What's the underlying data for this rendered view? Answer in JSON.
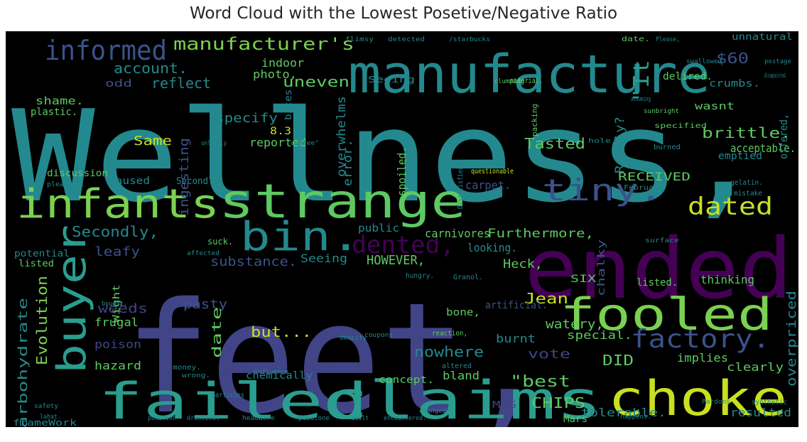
{
  "chart_data": {
    "type": "wordcloud",
    "title": "Word Cloud with the Lowest Posetive/Negative Ratio",
    "background": "#000000",
    "colors": {
      "teal": "#23898e",
      "blue": "#3b528b",
      "indigo": "#414487",
      "purple": "#440154",
      "green": "#5ec962",
      "lime": "#7ad151",
      "yellow": "#c8e020",
      "aqua": "#2a9d8f"
    },
    "words": [
      {
        "text": "Wellness,",
        "color": "teal"
      },
      {
        "text": "feet,",
        "color": "indigo"
      },
      {
        "text": "manufacture",
        "color": "teal"
      },
      {
        "text": "ended",
        "color": "purple"
      },
      {
        "text": "strange",
        "color": "green"
      },
      {
        "text": "choke",
        "color": "yellow"
      },
      {
        "text": "failed",
        "color": "aqua"
      },
      {
        "text": "claims",
        "color": "aqua"
      },
      {
        "text": "fooled",
        "color": "lime"
      },
      {
        "text": "buyer",
        "color": "aqua"
      },
      {
        "text": "infants",
        "color": "lime"
      },
      {
        "text": "bin.",
        "color": "teal"
      },
      {
        "text": "tiny.",
        "color": "blue"
      },
      {
        "text": "informed",
        "color": "blue"
      },
      {
        "text": "factory.",
        "color": "blue"
      },
      {
        "text": "dated",
        "color": "yellow"
      },
      {
        "text": "dented,",
        "color": "purple"
      },
      {
        "text": "manufacturer's",
        "color": "lime"
      },
      {
        "text": "\"It",
        "color": "aqua"
      },
      {
        "text": "brittle.",
        "color": "green"
      },
      {
        "text": "Tasted",
        "color": "green"
      },
      {
        "text": "account.",
        "color": "teal"
      },
      {
        "text": "reflect",
        "color": "teal"
      },
      {
        "text": "uneven",
        "color": "green"
      },
      {
        "text": "$60",
        "color": "blue"
      },
      {
        "text": "Furthermore,",
        "color": "green"
      },
      {
        "text": "Secondly,",
        "color": "teal"
      },
      {
        "text": "HOWEVER,",
        "color": "green"
      },
      {
        "text": "substance.",
        "color": "blue"
      },
      {
        "text": "Seeing",
        "color": "teal"
      },
      {
        "text": "Evolution",
        "color": "lime"
      },
      {
        "text": "carbohydrate",
        "color": "teal"
      },
      {
        "text": "leafy",
        "color": "blue"
      },
      {
        "text": "Jean",
        "color": "yellow"
      },
      {
        "text": "Heck,",
        "color": "green"
      },
      {
        "text": "watery,",
        "color": "green"
      },
      {
        "text": "but...",
        "color": "yellow"
      },
      {
        "text": "nowhere",
        "color": "teal"
      },
      {
        "text": "vote",
        "color": "indigo"
      },
      {
        "text": "\"best",
        "color": "green"
      },
      {
        "text": "CHIPS",
        "color": "green"
      },
      {
        "text": "overpriced",
        "color": "teal"
      },
      {
        "text": "clearly",
        "color": "green"
      },
      {
        "text": "tolerable.",
        "color": "teal"
      },
      {
        "text": "resulted",
        "color": "teal"
      },
      {
        "text": "special.",
        "color": "green"
      },
      {
        "text": "implies",
        "color": "green"
      },
      {
        "text": "DID",
        "color": "green"
      },
      {
        "text": "burnt",
        "color": "teal"
      },
      {
        "text": "bland",
        "color": "green"
      },
      {
        "text": "weeds",
        "color": "indigo"
      },
      {
        "text": "frugal",
        "color": "green"
      },
      {
        "text": "poison",
        "color": "indigo"
      },
      {
        "text": "hazard",
        "color": "green"
      },
      {
        "text": "pasty",
        "color": "blue"
      },
      {
        "text": "date",
        "color": "green"
      },
      {
        "text": "Same",
        "color": "yellow"
      },
      {
        "text": "reported",
        "color": "green"
      },
      {
        "text": "caused",
        "color": "teal"
      },
      {
        "text": "ingesting",
        "color": "blue"
      },
      {
        "text": "specify",
        "color": "teal"
      },
      {
        "text": "overwhelms",
        "color": "teal"
      },
      {
        "text": "error.",
        "color": "teal"
      },
      {
        "text": "spoiled.",
        "color": "green"
      },
      {
        "text": "Really?",
        "color": "teal"
      },
      {
        "text": "acceptable.",
        "color": "green"
      },
      {
        "text": "emptied",
        "color": "teal"
      },
      {
        "text": "RECEIVED",
        "color": "green"
      },
      {
        "text": "carpet.",
        "color": "blue"
      },
      {
        "text": "looking.",
        "color": "teal"
      },
      {
        "text": "carnivores",
        "color": "green"
      },
      {
        "text": "public",
        "color": "teal"
      },
      {
        "text": "chalky",
        "color": "blue"
      },
      {
        "text": "thinking",
        "color": "green"
      },
      {
        "text": "listed.",
        "color": "green"
      },
      {
        "text": "SIX",
        "color": "green"
      },
      {
        "text": "photo,",
        "color": "green"
      },
      {
        "text": "indoor",
        "color": "green"
      },
      {
        "text": "odd",
        "color": "blue"
      },
      {
        "text": "shame.",
        "color": "green"
      },
      {
        "text": "plastic.",
        "color": "green"
      },
      {
        "text": "delired.",
        "color": "green"
      },
      {
        "text": "crumbs.",
        "color": "teal"
      },
      {
        "text": "wasnt",
        "color": "green"
      },
      {
        "text": "unnatural",
        "color": "teal"
      },
      {
        "text": "offered,",
        "color": "teal"
      },
      {
        "text": "8.3",
        "color": "yellow"
      },
      {
        "text": "bites.",
        "color": "teal"
      },
      {
        "text": "Secondly",
        "color": "teal"
      },
      {
        "text": "bone,",
        "color": "green"
      },
      {
        "text": "artificial.",
        "color": "blue"
      },
      {
        "text": "potential",
        "color": "teal"
      },
      {
        "text": "listed",
        "color": "green"
      },
      {
        "text": "discussion",
        "color": "green"
      },
      {
        "text": "Wight",
        "color": "green"
      },
      {
        "text": "chemically",
        "color": "teal"
      },
      {
        "text": "concept.",
        "color": "green"
      },
      {
        "text": "MSG",
        "color": "indigo"
      },
      {
        "text": "Mars",
        "color": "green"
      },
      {
        "text": "frameWork",
        "color": "teal"
      },
      {
        "text": "suck.",
        "color": "green"
      },
      {
        "text": "questionable",
        "color": "yellow"
      },
      {
        "text": "February",
        "color": "teal"
      },
      {
        "text": "gelatin.",
        "color": "teal"
      },
      {
        "text": "burned",
        "color": "teal"
      },
      {
        "text": "sunbright",
        "color": "green"
      },
      {
        "text": "mistake",
        "color": "teal"
      },
      {
        "text": "hungry.",
        "color": "teal"
      },
      {
        "text": "reaction,",
        "color": "green"
      },
      {
        "text": "Granol.",
        "color": "teal"
      },
      {
        "text": "altered",
        "color": "teal"
      },
      {
        "text": "synthetic",
        "color": "teal"
      },
      {
        "text": "particles",
        "color": "teal"
      },
      {
        "text": "Pardons",
        "color": "teal"
      },
      {
        "text": "bought,",
        "color": "teal"
      },
      {
        "text": "safety",
        "color": "teal"
      },
      {
        "text": "lahat.",
        "color": "teal"
      },
      {
        "text": "money.",
        "color": "teal"
      },
      {
        "text": "wrong.",
        "color": "teal"
      },
      {
        "text": "influence",
        "color": "teal"
      },
      {
        "text": "density",
        "color": "teal"
      },
      {
        "text": "position",
        "color": "teal"
      },
      {
        "text": "drastical",
        "color": "teal"
      },
      {
        "text": "headache",
        "color": "teal"
      },
      {
        "text": "posalone",
        "color": "teal"
      },
      {
        "text": "built",
        "color": "teal"
      },
      {
        "text": "encountered.",
        "color": "teal"
      },
      {
        "text": "happens.",
        "color": "teal"
      },
      {
        "text": "changed",
        "color": "teal"
      },
      {
        "text": "swallowed",
        "color": "teal"
      },
      {
        "text": "postage",
        "color": "teal"
      },
      {
        "text": "Please,",
        "color": "teal"
      },
      {
        "text": "date.",
        "color": "green"
      },
      {
        "text": "Seeing",
        "color": "teal"
      },
      {
        "text": "material.",
        "color": "green"
      },
      {
        "text": "packing",
        "color": "green"
      },
      {
        "text": "clumping",
        "color": "green"
      },
      {
        "text": "specified",
        "color": "green"
      },
      {
        "text": "disappointed.",
        "color": "teal"
      },
      {
        "text": "flimsy",
        "color": "teal"
      },
      {
        "text": "detected",
        "color": "teal"
      },
      {
        "text": "/starbucks",
        "color": "teal"
      },
      {
        "text": "Dissatisfied",
        "color": "teal"
      },
      {
        "text": "pleasant.",
        "color": "teal"
      },
      {
        "text": "\"coffee\"",
        "color": "teal"
      },
      {
        "text": "affected",
        "color": "teal"
      },
      {
        "text": "assuming",
        "color": "teal"
      },
      {
        "text": "hole.",
        "color": "teal"
      },
      {
        "text": "coupons",
        "color": "teal"
      },
      {
        "text": "unlikely",
        "color": "teal"
      },
      {
        "text": "surface",
        "color": "teal"
      },
      {
        "text": "principles",
        "color": "teal"
      }
    ]
  }
}
